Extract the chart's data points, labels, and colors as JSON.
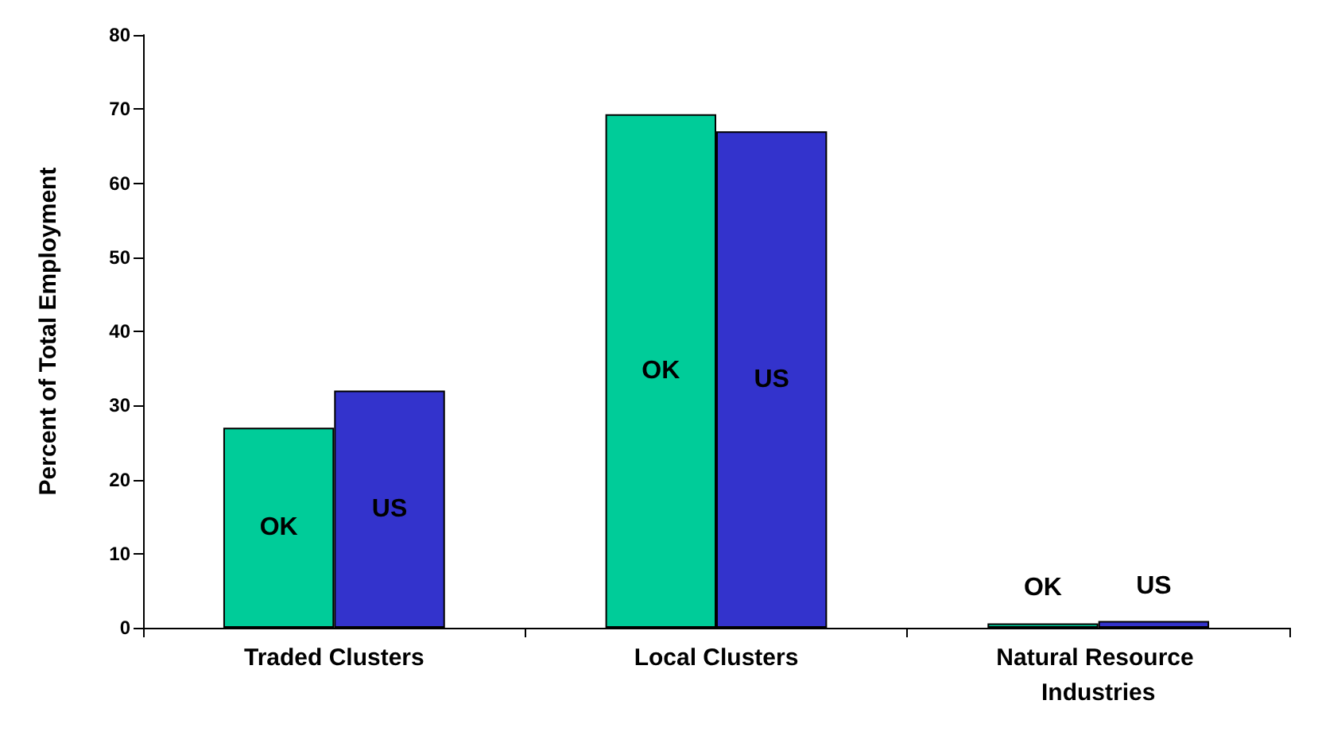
{
  "chart_data": {
    "type": "bar",
    "ylabel": "Percent of Total Employment",
    "categories": [
      "Traded Clusters",
      "Local Clusters",
      "Natural Resource Industries"
    ],
    "series": [
      {
        "name": "OK",
        "color": "#00cc99",
        "values": [
          27,
          69.3,
          0.6
        ]
      },
      {
        "name": "US",
        "color": "#3333cc",
        "values": [
          32,
          67,
          0.9
        ]
      }
    ],
    "ylim": [
      0,
      80
    ],
    "yticks": [
      0,
      10,
      20,
      30,
      40,
      50,
      60,
      70,
      80
    ],
    "grid": false
  }
}
